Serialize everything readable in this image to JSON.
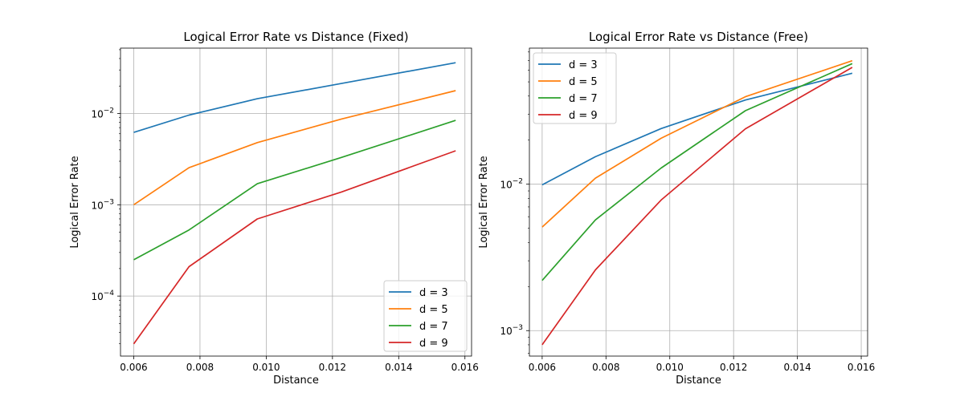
{
  "chart_data": [
    {
      "type": "line",
      "title": "Logical Error Rate vs Distance (Fixed)",
      "xlabel": "Distance",
      "ylabel": "Logical Error Rate",
      "yscale": "log",
      "grid": true,
      "legend_position": "lower-right",
      "xlim": [
        0.0056,
        0.0162
      ],
      "ylim": [
        2.2e-05,
        0.052
      ],
      "xticks": [
        {
          "value": 0.006,
          "label": "0.006"
        },
        {
          "value": 0.008,
          "label": "0.008"
        },
        {
          "value": 0.01,
          "label": "0.010"
        },
        {
          "value": 0.012,
          "label": "0.012"
        },
        {
          "value": 0.014,
          "label": "0.014"
        },
        {
          "value": 0.016,
          "label": "0.016"
        }
      ],
      "yticks": [
        {
          "value": 0.01,
          "base": "10",
          "exp": "−2"
        },
        {
          "value": 0.001,
          "base": "10",
          "exp": "−3"
        },
        {
          "value": 0.0001,
          "base": "10",
          "exp": "−4"
        }
      ],
      "x": [
        0.006,
        0.00767,
        0.00973,
        0.01227,
        0.01572
      ],
      "series": [
        {
          "name": "d = 3",
          "color": "#1f77b4",
          "values": [
            0.0062,
            0.0096,
            0.0145,
            0.0213,
            0.036
          ]
        },
        {
          "name": "d = 5",
          "color": "#ff7f0e",
          "values": [
            0.001,
            0.00255,
            0.0048,
            0.0087,
            0.0178
          ]
        },
        {
          "name": "d = 7",
          "color": "#2ca02c",
          "values": [
            0.00025,
            0.00053,
            0.0017,
            0.0033,
            0.0084
          ]
        },
        {
          "name": "d = 9",
          "color": "#d62728",
          "values": [
            3e-05,
            0.00021,
            0.0007,
            0.00138,
            0.0039
          ]
        }
      ]
    },
    {
      "type": "line",
      "title": "Logical Error Rate vs Distance (Free)",
      "xlabel": "Distance",
      "ylabel": "Logical Error Rate",
      "yscale": "log",
      "grid": true,
      "legend_position": "upper-left",
      "xlim": [
        0.0056,
        0.0162
      ],
      "ylim": [
        0.00067,
        0.085
      ],
      "xticks": [
        {
          "value": 0.006,
          "label": "0.006"
        },
        {
          "value": 0.008,
          "label": "0.008"
        },
        {
          "value": 0.01,
          "label": "0.010"
        },
        {
          "value": 0.012,
          "label": "0.012"
        },
        {
          "value": 0.014,
          "label": "0.014"
        },
        {
          "value": 0.016,
          "label": "0.016"
        }
      ],
      "yticks": [
        {
          "value": 0.01,
          "base": "10",
          "exp": "−2"
        },
        {
          "value": 0.001,
          "base": "10",
          "exp": "−3"
        }
      ],
      "x": [
        0.006,
        0.00767,
        0.00973,
        0.01237,
        0.01572
      ],
      "series": [
        {
          "name": "d = 3",
          "color": "#1f77b4",
          "values": [
            0.0099,
            0.0154,
            0.024,
            0.0376,
            0.0573
          ]
        },
        {
          "name": "d = 5",
          "color": "#ff7f0e",
          "values": [
            0.0051,
            0.011,
            0.0206,
            0.0396,
            0.0697
          ]
        },
        {
          "name": "d = 7",
          "color": "#2ca02c",
          "values": [
            0.0022,
            0.0057,
            0.0129,
            0.0318,
            0.0666
          ]
        },
        {
          "name": "d = 9",
          "color": "#d62728",
          "values": [
            0.0008,
            0.0026,
            0.0078,
            0.0239,
            0.0628
          ]
        }
      ]
    }
  ]
}
